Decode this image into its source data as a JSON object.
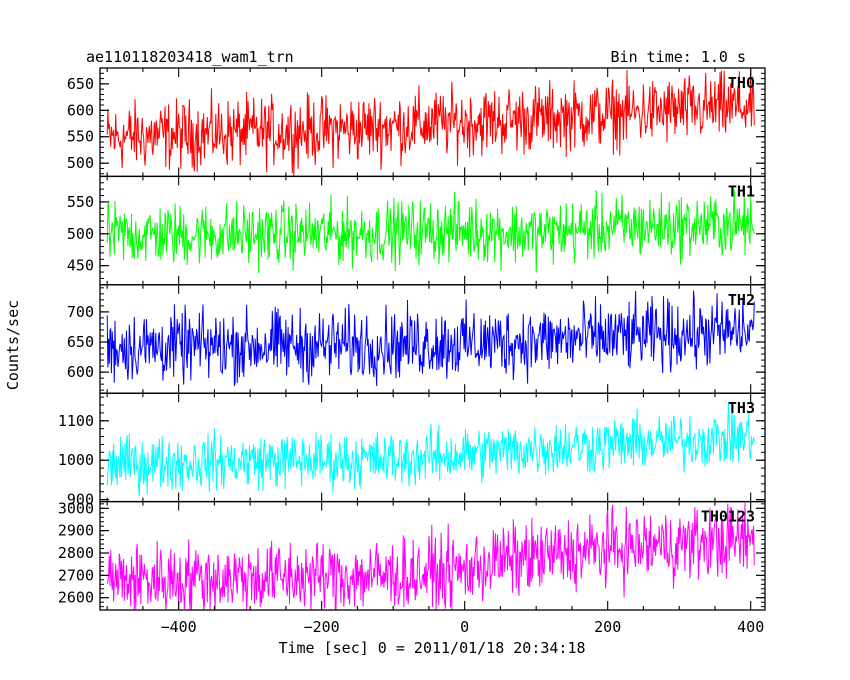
{
  "header": {
    "title": "ae110118203418_wam1_trn",
    "bin_time": "Bin time: 1.0 s"
  },
  "chart_data": {
    "type": "line",
    "title": "ae110118203418_wam1_trn",
    "subtitle": "Bin time: 1.0 s",
    "xlabel": "Time [sec] 0 = 2011/01/18 20:34:18",
    "ylabel": "Counts/sec",
    "xlim": [
      -510,
      420
    ],
    "x_ticks": [
      -400,
      -200,
      0,
      200,
      400
    ],
    "x_ticks_labels": [
      "−400",
      "−200",
      "0",
      "200",
      "400"
    ],
    "x_range": [
      -500,
      405
    ],
    "bin_time_s": 1.0,
    "grid": false,
    "panels": [
      {
        "name": "TH0",
        "color": "#ff0000",
        "ylim": [
          475,
          680
        ],
        "y_ticks": [
          500,
          550,
          600,
          650
        ],
        "trend": [
          [
            -500,
            548
          ],
          [
            -350,
            557
          ],
          [
            -200,
            562
          ],
          [
            0,
            578
          ],
          [
            100,
            585
          ],
          [
            200,
            592
          ],
          [
            300,
            600
          ],
          [
            405,
            608
          ]
        ],
        "noise_amplitude": 55
      },
      {
        "name": "TH1",
        "color": "#00ff00",
        "ylim": [
          420,
          590
        ],
        "y_ticks": [
          450,
          500,
          550
        ],
        "trend": [
          [
            -500,
            498
          ],
          [
            -200,
            500
          ],
          [
            0,
            506
          ],
          [
            100,
            500
          ],
          [
            200,
            510
          ],
          [
            405,
            515
          ]
        ],
        "noise_amplitude": 42
      },
      {
        "name": "TH2",
        "color": "#0000ff",
        "ylim": [
          565,
          745
        ],
        "y_ticks": [
          600,
          650,
          700
        ],
        "trend": [
          [
            -500,
            642
          ],
          [
            -200,
            645
          ],
          [
            0,
            648
          ],
          [
            100,
            652
          ],
          [
            200,
            658
          ],
          [
            405,
            668
          ]
        ],
        "noise_amplitude": 50
      },
      {
        "name": "TH3",
        "color": "#00ffff",
        "ylim": [
          895,
          1170
        ],
        "y_ticks": [
          900,
          1000,
          1100
        ],
        "trend": [
          [
            -500,
            990
          ],
          [
            -300,
            998
          ],
          [
            -100,
            1002
          ],
          [
            0,
            1015
          ],
          [
            100,
            1030
          ],
          [
            200,
            1040
          ],
          [
            300,
            1048
          ],
          [
            405,
            1060
          ]
        ],
        "noise_amplitude": 60
      },
      {
        "name": "TH0123",
        "color": "#ff00ff",
        "ylim": [
          2545,
          3030
        ],
        "y_ticks": [
          2600,
          2700,
          2800,
          2900,
          3000
        ],
        "trend": [
          [
            -500,
            2680
          ],
          [
            -300,
            2690
          ],
          [
            -100,
            2700
          ],
          [
            0,
            2720
          ],
          [
            40,
            2760
          ],
          [
            100,
            2780
          ],
          [
            200,
            2820
          ],
          [
            405,
            2860
          ]
        ],
        "noise_amplitude": 140
      }
    ]
  }
}
